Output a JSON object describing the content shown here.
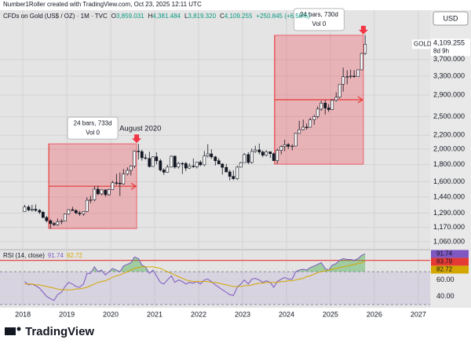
{
  "chart_data": {
    "type": "candlestick",
    "credit": "Number1Roller created with TradingView.com, Oct 23, 2025 12:11 UTC",
    "title": "CFDs on Gold (US$ / OZ) · 1M · TVC",
    "header": [
      {
        "key": "O",
        "label": "3,859.031"
      },
      {
        "key": "H",
        "label": "4,381.484"
      },
      {
        "key": "L",
        "label": "3,819.320"
      },
      {
        "key": "C",
        "label": "4,109.255"
      }
    ],
    "change": "+250.845 (+6.50%)",
    "currency": "USD",
    "symbol": "GOLD",
    "last_label": "4,109.255",
    "countdown": "8d 9h",
    "footer": "TradingView",
    "log_scale": true,
    "grid": true,
    "up_color": "#ffffff",
    "down_color": "#131722",
    "x": [
      2018.04,
      2018.13,
      2018.21,
      2018.29,
      2018.38,
      2018.46,
      2018.54,
      2018.63,
      2018.71,
      2018.79,
      2018.88,
      2018.96,
      2019.04,
      2019.13,
      2019.21,
      2019.29,
      2019.38,
      2019.46,
      2019.54,
      2019.63,
      2019.71,
      2019.79,
      2019.88,
      2019.96,
      2020.04,
      2020.13,
      2020.21,
      2020.29,
      2020.38,
      2020.46,
      2020.54,
      2020.63,
      2020.71,
      2020.79,
      2020.88,
      2020.96,
      2021.04,
      2021.13,
      2021.21,
      2021.29,
      2021.38,
      2021.46,
      2021.54,
      2021.63,
      2021.71,
      2021.79,
      2021.88,
      2021.96,
      2022.04,
      2022.13,
      2022.21,
      2022.29,
      2022.38,
      2022.46,
      2022.54,
      2022.63,
      2022.71,
      2022.79,
      2022.88,
      2022.96,
      2023.04,
      2023.13,
      2023.21,
      2023.29,
      2023.38,
      2023.46,
      2023.54,
      2023.63,
      2023.71,
      2023.79,
      2023.88,
      2023.96,
      2024.04,
      2024.13,
      2024.21,
      2024.29,
      2024.38,
      2024.46,
      2024.54,
      2024.63,
      2024.71,
      2024.79,
      2024.88,
      2024.96,
      2025.04,
      2025.13,
      2025.21,
      2025.29,
      2025.38,
      2025.46,
      2025.54,
      2025.63,
      2025.71,
      2025.79
    ],
    "open": [
      1303,
      1345,
      1318,
      1325,
      1315,
      1298,
      1252,
      1224,
      1201,
      1192,
      1215,
      1222,
      1282,
      1321,
      1313,
      1292,
      1284,
      1305,
      1409,
      1413,
      1520,
      1472,
      1513,
      1464,
      1517,
      1589,
      1585,
      1577,
      1687,
      1730,
      1781,
      1975,
      1967,
      1886,
      1878,
      1776,
      1898,
      1847,
      1734,
      1708,
      1769,
      1906,
      1770,
      1814,
      1813,
      1757,
      1783,
      1774,
      1829,
      1797,
      1909,
      1937,
      1897,
      1848,
      1807,
      1766,
      1711,
      1660,
      1634,
      1768,
      1824,
      1928,
      1826,
      1969,
      1990,
      1962,
      1919,
      1965,
      1940,
      1849,
      1983,
      2036,
      2063,
      2039,
      2044,
      2229,
      2286,
      2327,
      2326,
      2447,
      2503,
      2634,
      2744,
      2654,
      2624,
      2798,
      2857,
      3124,
      3288,
      3289,
      3303,
      3289,
      3448,
      3859.031
    ],
    "high": [
      1366,
      1362,
      1365,
      1369,
      1326,
      1309,
      1265,
      1237,
      1214,
      1243,
      1237,
      1284,
      1326,
      1347,
      1324,
      1310,
      1306,
      1439,
      1453,
      1555,
      1557,
      1517,
      1516,
      1525,
      1611,
      1689,
      1704,
      1747,
      1765,
      1789,
      1984,
      2075,
      1992,
      1933,
      1965,
      1905,
      1959,
      1871,
      1755,
      1798,
      1916,
      1916,
      1834,
      1832,
      1834,
      1814,
      1877,
      1831,
      1853,
      1974,
      2070,
      1998,
      1910,
      1879,
      1814,
      1808,
      1735,
      1730,
      1786,
      1833,
      1949,
      1959,
      2010,
      2049,
      2079,
      1983,
      1987,
      1970,
      1953,
      2009,
      2052,
      2135,
      2088,
      2065,
      2236,
      2431,
      2450,
      2387,
      2483,
      2531,
      2685,
      2790,
      2801,
      2726,
      2817,
      2956,
      3128,
      3500,
      3435,
      3452,
      3439,
      3453,
      3872,
      4381.484
    ],
    "low": [
      1302,
      1307,
      1303,
      1301,
      1282,
      1245,
      1211,
      1160,
      1180,
      1183,
      1196,
      1221,
      1276,
      1311,
      1281,
      1266,
      1267,
      1301,
      1381,
      1400,
      1459,
      1458,
      1445,
      1454,
      1517,
      1563,
      1451,
      1568,
      1670,
      1671,
      1757,
      1863,
      1849,
      1860,
      1764,
      1776,
      1803,
      1717,
      1677,
      1705,
      1765,
      1750,
      1750,
      1688,
      1721,
      1746,
      1759,
      1753,
      1781,
      1780,
      1890,
      1872,
      1787,
      1805,
      1681,
      1709,
      1615,
      1617,
      1617,
      1765,
      1823,
      1805,
      1810,
      1950,
      1932,
      1893,
      1902,
      1885,
      1848,
      1810,
      1931,
      1973,
      2002,
      1984,
      2039,
      2228,
      2277,
      2286,
      2319,
      2364,
      2471,
      2603,
      2536,
      2583,
      2614,
      2772,
      2832,
      2970,
      3121,
      3247,
      3268,
      3312,
      3436,
      3819.32
    ],
    "close": [
      1345,
      1318,
      1325,
      1315,
      1298,
      1252,
      1224,
      1201,
      1192,
      1215,
      1222,
      1282,
      1321,
      1313,
      1292,
      1284,
      1305,
      1409,
      1413,
      1520,
      1472,
      1513,
      1464,
      1517,
      1589,
      1585,
      1577,
      1687,
      1730,
      1781,
      1975,
      1967,
      1886,
      1878,
      1776,
      1898,
      1847,
      1734,
      1708,
      1769,
      1906,
      1770,
      1814,
      1813,
      1757,
      1783,
      1774,
      1829,
      1797,
      1909,
      1937,
      1897,
      1848,
      1807,
      1766,
      1711,
      1660,
      1634,
      1768,
      1824,
      1928,
      1826,
      1969,
      1990,
      1962,
      1919,
      1965,
      1940,
      1849,
      1983,
      2036,
      2063,
      2039,
      2044,
      2229,
      2286,
      2327,
      2326,
      2447,
      2503,
      2634,
      2744,
      2654,
      2624,
      2798,
      2857,
      3124,
      3288,
      3289,
      3303,
      3289,
      3448,
      3858,
      4109.255
    ],
    "xlim": [
      2017.48,
      2027.27
    ],
    "xticks": [
      2018,
      2019,
      2020,
      2021,
      2022,
      2023,
      2024,
      2025,
      2026,
      2027
    ],
    "ylim": [
      1004,
      5190
    ],
    "yticks": [
      {
        "value": 1060,
        "label": "1,060.000"
      },
      {
        "value": 1170,
        "label": "1,170.000"
      },
      {
        "value": 1290,
        "label": "1,290.000"
      },
      {
        "value": 1440,
        "label": "1,440.000"
      },
      {
        "value": 1600,
        "label": "1,600.000"
      },
      {
        "value": 1800,
        "label": "1,800.000"
      },
      {
        "value": 2000,
        "label": "2,000.000"
      },
      {
        "value": 2200,
        "label": "2,200.000"
      },
      {
        "value": 2500,
        "label": "2,500.000"
      },
      {
        "value": 2900,
        "label": "2,900.000"
      },
      {
        "value": 3300,
        "label": "3,300.000"
      },
      {
        "value": 3700,
        "label": "3,700.000"
      }
    ],
    "ranges": [
      {
        "label": "24 bars, 733d",
        "sublabel": "Vol 0",
        "marker_label": "August 2020",
        "x": [
          2018.59,
          2020.59
        ],
        "y": [
          1160,
          2075
        ]
      },
      {
        "label": "24 bars, 730d",
        "sublabel": "Vol 0",
        "x": [
          2023.73,
          2025.75
        ],
        "y": [
          1805,
          4371
        ]
      }
    ],
    "indicator": {
      "type": "line",
      "title": "RSI (14, close)",
      "ylim": [
        28,
        95
      ],
      "yticks": [
        {
          "value": 60,
          "label": "60.00"
        },
        {
          "value": 40,
          "label": "40.00"
        }
      ],
      "bands": [
        30,
        70
      ],
      "level": {
        "value": 83.79,
        "color": "#e53935"
      },
      "series": [
        {
          "color": "#7e57c2",
          "values": [
            58,
            54,
            55,
            53,
            50,
            45,
            40,
            37,
            35,
            42,
            45,
            52,
            57,
            55,
            52,
            51,
            55,
            68,
            68,
            76,
            70,
            72,
            66,
            70,
            74,
            72,
            70,
            77,
            79,
            81,
            88,
            86,
            78,
            76,
            68,
            72,
            65,
            57,
            55,
            60,
            65,
            57,
            60,
            58,
            55,
            57,
            56,
            58,
            55,
            60,
            61,
            58,
            54,
            51,
            48,
            45,
            42,
            41,
            51,
            55,
            60,
            55,
            61,
            62,
            60,
            57,
            59,
            57,
            51,
            58,
            61,
            63,
            61,
            61,
            70,
            72,
            73,
            72,
            75,
            77,
            79,
            81,
            74,
            72,
            78,
            80,
            84,
            86,
            85,
            85,
            84,
            86,
            90,
            91.74
          ]
        },
        {
          "color": "#d4a600",
          "values": [
            55,
            55,
            55,
            54,
            54,
            53,
            52,
            51,
            50,
            49,
            48,
            48,
            48,
            48,
            49,
            49,
            50,
            51,
            53,
            55,
            57,
            58,
            59,
            61,
            63,
            65,
            66,
            68,
            70,
            72,
            74,
            75,
            76,
            76,
            76,
            76,
            75,
            74,
            72,
            70,
            68,
            66,
            64,
            62,
            60,
            59,
            58,
            58,
            58,
            58,
            58,
            57,
            57,
            56,
            55,
            54,
            53,
            52,
            52,
            52,
            53,
            53,
            54,
            55,
            56,
            56,
            57,
            57,
            57,
            57,
            58,
            58,
            59,
            59,
            60,
            61,
            62,
            64,
            65,
            67,
            69,
            70,
            71,
            72,
            73,
            74,
            75,
            76,
            77,
            78,
            79,
            80,
            81,
            82.72
          ]
        }
      ]
    }
  }
}
